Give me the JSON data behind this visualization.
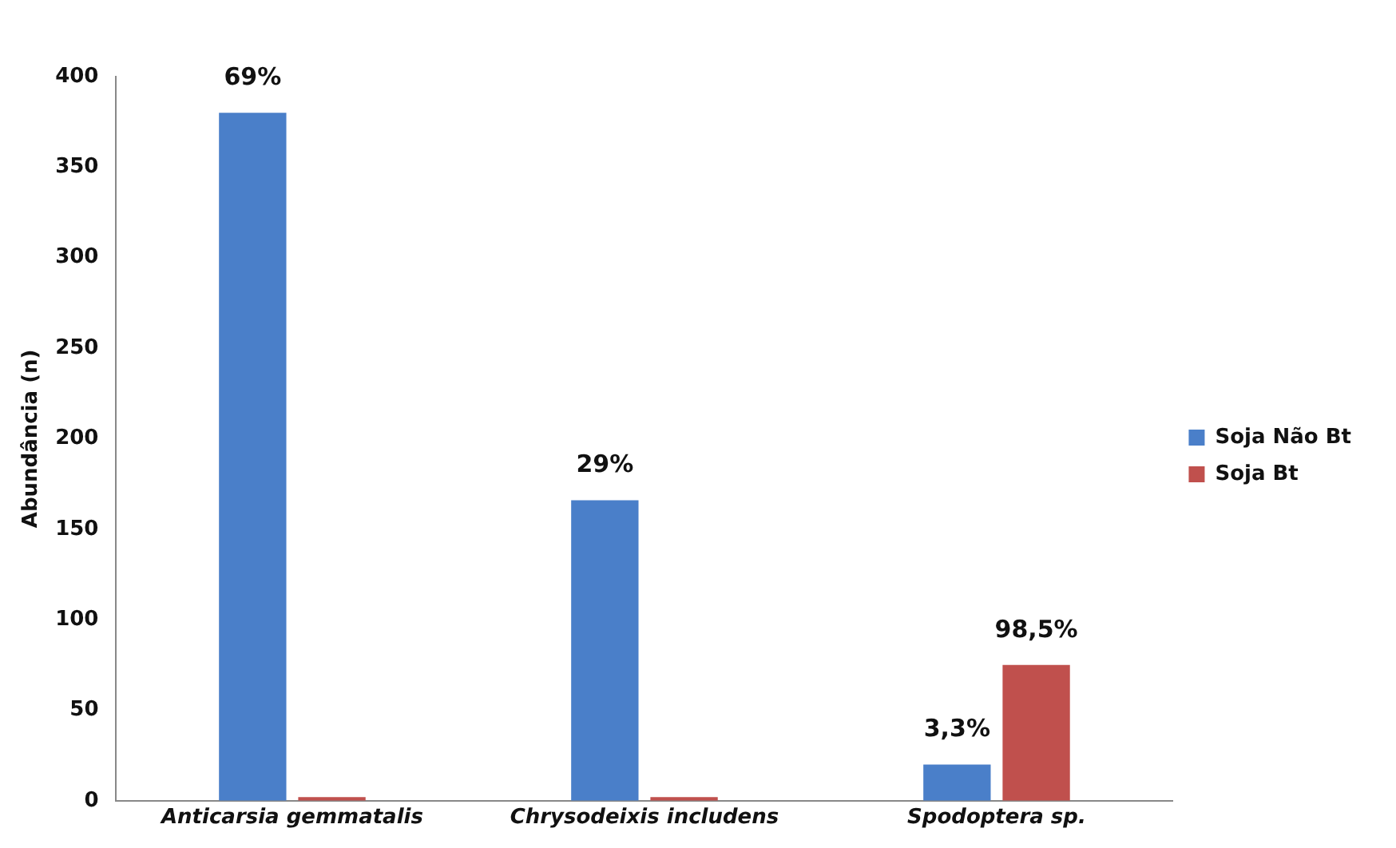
{
  "chart_data": {
    "type": "bar",
    "ylabel": "Abundância (n)",
    "categories": [
      "Anticarsia gemmatalis",
      "Chrysodeixis includens",
      "Spodoptera sp."
    ],
    "series": [
      {
        "name": "Soja Não Bt",
        "color": "#4a7fc9",
        "values": [
          380,
          166,
          20
        ]
      },
      {
        "name": "Soja Bt",
        "color": "#c0504d",
        "values": [
          2,
          2,
          75
        ]
      }
    ],
    "annotations": [
      {
        "text": "69%",
        "x": "Anticarsia gemmatalis",
        "y": 380
      },
      {
        "text": "29%",
        "x": "Chrysodeixis includens",
        "y": 166
      },
      {
        "text": "3,3%",
        "x": "Spodoptera sp.",
        "y": 20
      },
      {
        "text": "98,5%",
        "x": "Spodoptera sp.",
        "y": 75
      }
    ],
    "ylim": [
      0,
      400
    ],
    "yticks": [
      0,
      50,
      100,
      150,
      200,
      250,
      300,
      350,
      400
    ],
    "grid": false,
    "legend": "right"
  }
}
